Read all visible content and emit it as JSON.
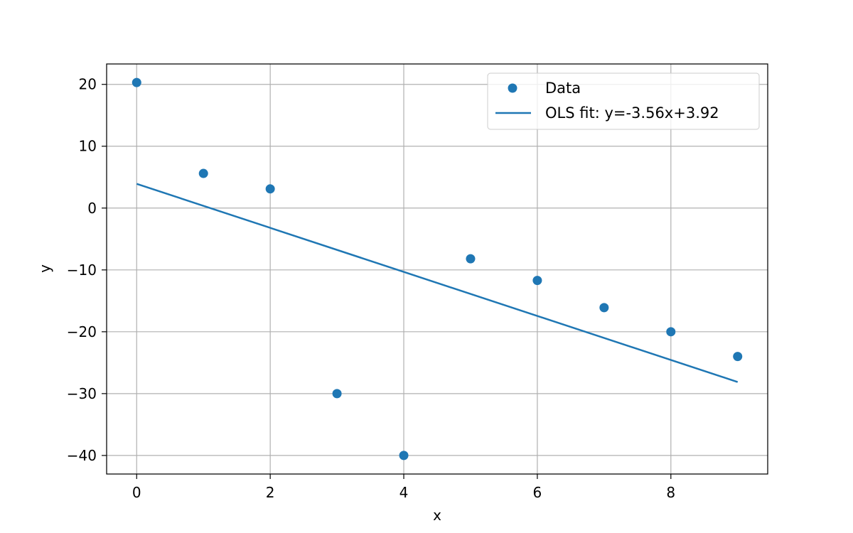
{
  "chart_data": {
    "type": "scatter",
    "title": "",
    "xlabel": "x",
    "ylabel": "y",
    "xlim": [
      -0.45,
      9.45
    ],
    "ylim": [
      -43.0,
      23.3
    ],
    "xticks": [
      0,
      2,
      4,
      6,
      8
    ],
    "yticks": [
      20,
      10,
      0,
      -10,
      -20,
      -30,
      -40
    ],
    "ytick_labels": [
      "20",
      "10",
      "0",
      "−10",
      "−20",
      "−30",
      "−40"
    ],
    "grid": true,
    "legend_position": "upper right",
    "series": [
      {
        "name": "Data",
        "kind": "scatter",
        "color": "#1f77b4",
        "x": [
          0,
          1,
          2,
          3,
          4,
          5,
          6,
          7,
          8,
          9
        ],
        "y": [
          20.3,
          5.6,
          3.1,
          -30.0,
          -40.0,
          -8.2,
          -11.7,
          -16.1,
          -20.0,
          -24.0
        ]
      },
      {
        "name": "OLS fit: y=-3.56x+3.92",
        "kind": "line",
        "color": "#1f77b4",
        "x": [
          0,
          9
        ],
        "y": [
          3.92,
          -28.12
        ]
      }
    ]
  }
}
